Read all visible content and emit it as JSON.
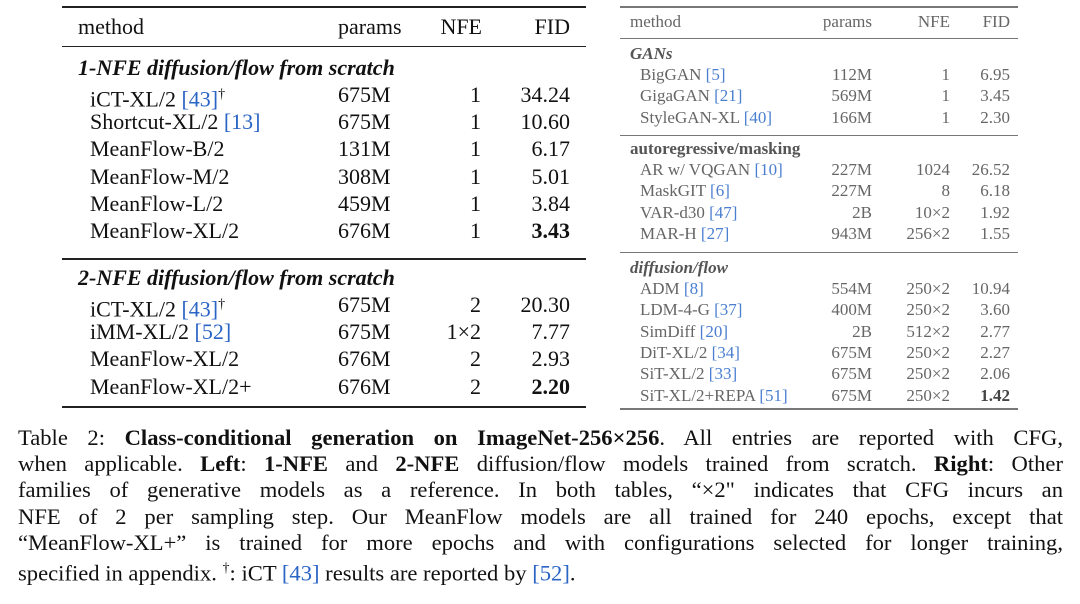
{
  "left_table": {
    "headers": {
      "method": "method",
      "params": "params",
      "nfe": "NFE",
      "fid": "FID"
    },
    "sections": [
      {
        "title": "1-NFE diffusion/flow from scratch",
        "rows": [
          {
            "method": "iCT-XL/2 ",
            "cite": "[43]",
            "sup": "†",
            "params": "675M",
            "nfe": "1",
            "fid": "34.24",
            "bold": false
          },
          {
            "method": "Shortcut-XL/2 ",
            "cite": "[13]",
            "sup": "",
            "params": "675M",
            "nfe": "1",
            "fid": "10.60",
            "bold": false
          },
          {
            "method": "MeanFlow-B/2",
            "cite": "",
            "sup": "",
            "params": "131M",
            "nfe": "1",
            "fid": "6.17",
            "bold": false
          },
          {
            "method": "MeanFlow-M/2",
            "cite": "",
            "sup": "",
            "params": "308M",
            "nfe": "1",
            "fid": "5.01",
            "bold": false
          },
          {
            "method": "MeanFlow-L/2",
            "cite": "",
            "sup": "",
            "params": "459M",
            "nfe": "1",
            "fid": "3.84",
            "bold": false
          },
          {
            "method": "MeanFlow-XL/2",
            "cite": "",
            "sup": "",
            "params": "676M",
            "nfe": "1",
            "fid": "3.43",
            "bold": true
          }
        ]
      },
      {
        "title": "2-NFE diffusion/flow from scratch",
        "rows": [
          {
            "method": "iCT-XL/2 ",
            "cite": "[43]",
            "sup": "†",
            "params": "675M",
            "nfe": "2",
            "fid": "20.30",
            "bold": false
          },
          {
            "method": "iMM-XL/2 ",
            "cite": "[52]",
            "sup": "",
            "params": "675M",
            "nfe": "1×2",
            "fid": "7.77",
            "bold": false
          },
          {
            "method": "MeanFlow-XL/2",
            "cite": "",
            "sup": "",
            "params": "676M",
            "nfe": "2",
            "fid": "2.93",
            "bold": false
          },
          {
            "method": "MeanFlow-XL/2+",
            "cite": "",
            "sup": "",
            "params": "676M",
            "nfe": "2",
            "fid": "2.20",
            "bold": true
          }
        ]
      }
    ]
  },
  "right_table": {
    "headers": {
      "method": "method",
      "params": "params",
      "nfe": "NFE",
      "fid": "FID"
    },
    "sections": [
      {
        "title": "GANs",
        "style": "bi",
        "rows": [
          {
            "method": "BigGAN ",
            "cite": "[5]",
            "params": "112M",
            "nfe": "1",
            "fid": "6.95",
            "bold": false
          },
          {
            "method": "GigaGAN ",
            "cite": "[21]",
            "params": "569M",
            "nfe": "1",
            "fid": "3.45",
            "bold": false
          },
          {
            "method": "StyleGAN-XL ",
            "cite": "[40]",
            "params": "166M",
            "nfe": "1",
            "fid": "2.30",
            "bold": false
          }
        ]
      },
      {
        "title": "autoregressive/masking",
        "style": "b",
        "rows": [
          {
            "method": "AR w/ VQGAN ",
            "cite": "[10]",
            "params": "227M",
            "nfe": "1024",
            "fid": "26.52",
            "bold": false
          },
          {
            "method": "MaskGIT ",
            "cite": "[6]",
            "params": "227M",
            "nfe": "8",
            "fid": "6.18",
            "bold": false
          },
          {
            "method": "VAR-d30 ",
            "cite": "[47]",
            "params": "2B",
            "nfe": "10×2",
            "fid": "1.92",
            "bold": false
          },
          {
            "method": "MAR-H ",
            "cite": "[27]",
            "params": "943M",
            "nfe": "256×2",
            "fid": "1.55",
            "bold": false
          }
        ]
      },
      {
        "title": "diffusion/flow",
        "style": "bi",
        "rows": [
          {
            "method": "ADM ",
            "cite": "[8]",
            "params": "554M",
            "nfe": "250×2",
            "fid": "10.94",
            "bold": false
          },
          {
            "method": "LDM-4-G ",
            "cite": "[37]",
            "params": "400M",
            "nfe": "250×2",
            "fid": "3.60",
            "bold": false
          },
          {
            "method": "SimDiff ",
            "cite": "[20]",
            "params": "2B",
            "nfe": "512×2",
            "fid": "2.77",
            "bold": false
          },
          {
            "method": "DiT-XL/2 ",
            "cite": "[34]",
            "params": "675M",
            "nfe": "250×2",
            "fid": "2.27",
            "bold": false
          },
          {
            "method": "SiT-XL/2 ",
            "cite": "[33]",
            "params": "675M",
            "nfe": "250×2",
            "fid": "2.06",
            "bold": false
          },
          {
            "method": "SiT-XL/2+REPA ",
            "cite": "[51]",
            "params": "675M",
            "nfe": "250×2",
            "fid": "1.42",
            "bold": true
          }
        ]
      }
    ]
  },
  "caption": {
    "lines": [
      [
        {
          "t": "Table 2: ",
          "s": "n"
        },
        {
          "t": "Class-conditional generation on ImageNet-256×256",
          "s": "b"
        },
        {
          "t": ". All entries are reported with CFG,",
          "s": "n"
        }
      ],
      [
        {
          "t": "when applicable. ",
          "s": "n"
        },
        {
          "t": "Left",
          "s": "b"
        },
        {
          "t": ": ",
          "s": "n"
        },
        {
          "t": "1-NFE",
          "s": "b"
        },
        {
          "t": " and ",
          "s": "n"
        },
        {
          "t": "2-NFE",
          "s": "b"
        },
        {
          "t": " diffusion/flow models trained from scratch. ",
          "s": "n"
        },
        {
          "t": "Right",
          "s": "b"
        },
        {
          "t": ": Other",
          "s": "n"
        }
      ],
      [
        {
          "t": "families of generative models as a reference.  In both tables, “×2\" indicates that CFG incurs an",
          "s": "n"
        }
      ],
      [
        {
          "t": "NFE of 2 per sampling step.  Our MeanFlow models are all trained for 240 epochs, except that",
          "s": "n"
        }
      ],
      [
        {
          "t": "“MeanFlow-XL+” is trained for more epochs and with configurations selected for longer training,",
          "s": "n"
        }
      ],
      [
        {
          "t": "specified in appendix. ",
          "s": "n"
        },
        {
          "t": "†",
          "s": "sup"
        },
        {
          "t": ": iCT ",
          "s": "n"
        },
        {
          "t": "[43]",
          "s": "c"
        },
        {
          "t": " results are reported by ",
          "s": "n"
        },
        {
          "t": "[52]",
          "s": "c"
        },
        {
          "t": ".",
          "s": "n"
        }
      ]
    ]
  }
}
